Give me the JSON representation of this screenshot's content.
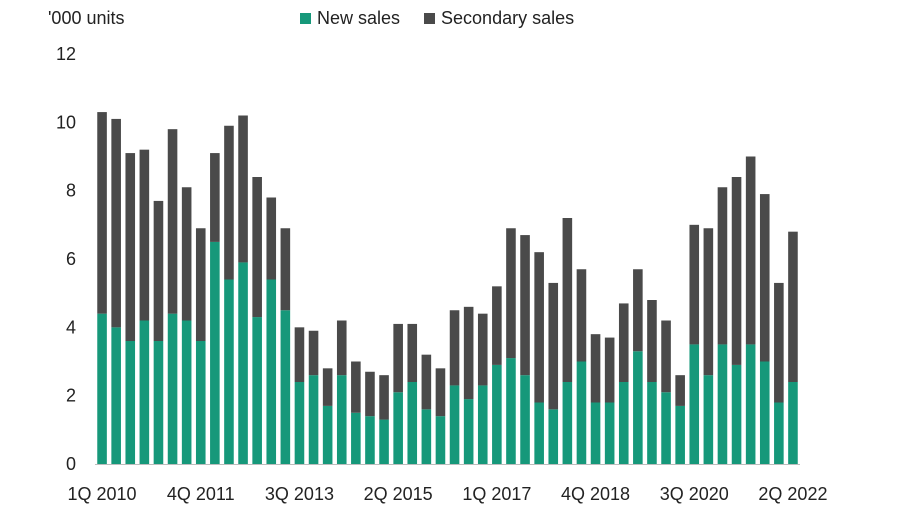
{
  "chart_data": {
    "type": "bar",
    "stacked": true,
    "unit_label": "'000 units",
    "ylim": [
      0,
      12
    ],
    "yticks": [
      0,
      2,
      4,
      6,
      8,
      10,
      12
    ],
    "xtick_labels": [
      {
        "index": 0,
        "label": "1Q 2010"
      },
      {
        "index": 7,
        "label": "4Q 2011"
      },
      {
        "index": 14,
        "label": "3Q 2013"
      },
      {
        "index": 21,
        "label": "2Q 2015"
      },
      {
        "index": 28,
        "label": "1Q 2017"
      },
      {
        "index": 35,
        "label": "4Q 2018"
      },
      {
        "index": 42,
        "label": "3Q 2020"
      },
      {
        "index": 49,
        "label": "2Q 2022"
      }
    ],
    "colors": {
      "new": "#16987a",
      "secondary": "#4a4a4a"
    },
    "series": [
      {
        "name": "New sales",
        "values": [
          4.4,
          4.0,
          3.6,
          4.2,
          3.6,
          4.4,
          4.2,
          3.6,
          6.5,
          5.4,
          5.9,
          4.3,
          5.4,
          4.5,
          2.4,
          2.6,
          1.7,
          2.6,
          1.5,
          1.4,
          1.3,
          2.1,
          2.4,
          1.6,
          1.4,
          2.3,
          1.9,
          2.3,
          2.9,
          3.1,
          2.6,
          1.8,
          1.6,
          2.4,
          3.0,
          1.8,
          1.8,
          2.4,
          3.3,
          2.4,
          2.1,
          1.7,
          3.5,
          2.6,
          3.5,
          2.9,
          3.5,
          3.0,
          1.8,
          2.4
        ]
      },
      {
        "name": "Secondary sales",
        "values": [
          5.9,
          6.1,
          5.5,
          5.0,
          4.1,
          5.4,
          3.9,
          3.3,
          2.6,
          4.5,
          4.3,
          4.1,
          2.4,
          2.4,
          1.6,
          1.3,
          1.1,
          1.6,
          1.5,
          1.3,
          1.3,
          2.0,
          1.7,
          1.6,
          1.4,
          2.2,
          2.7,
          2.1,
          2.3,
          3.8,
          4.1,
          4.4,
          3.7,
          4.8,
          2.7,
          2.0,
          1.9,
          2.3,
          2.4,
          2.4,
          2.1,
          0.9,
          3.5,
          4.3,
          4.6,
          5.5,
          5.5,
          4.9,
          3.5,
          4.4
        ]
      }
    ]
  }
}
